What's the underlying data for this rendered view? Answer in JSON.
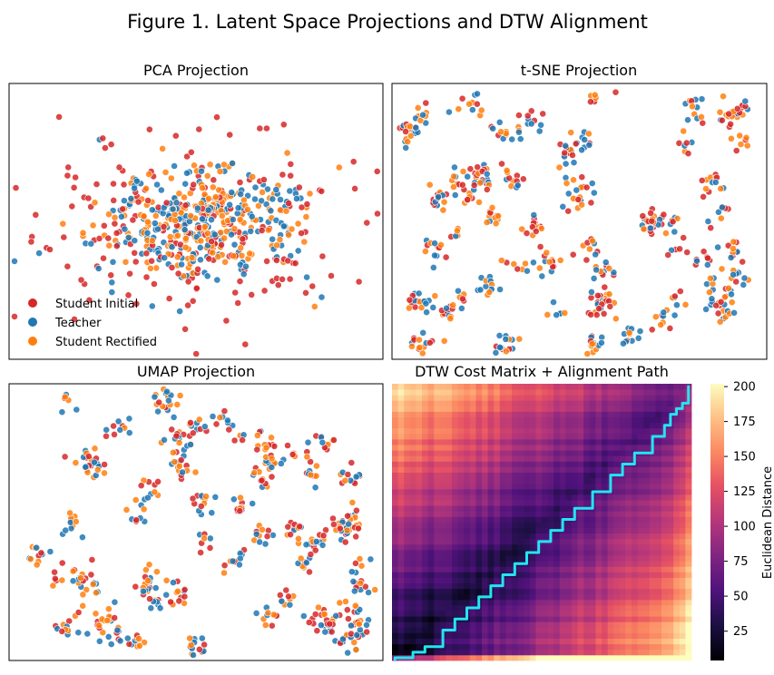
{
  "figure": {
    "title": "Figure 1. Latent Space Projections and DTW Alignment"
  },
  "colors": {
    "student_initial": "#d62728",
    "teacher": "#1f77b4",
    "student_rectified": "#ff7f0e",
    "path": "#22e5f2"
  },
  "chart_data": [
    {
      "type": "scatter",
      "title": "PCA Projection",
      "xlabel": "",
      "ylabel": "",
      "grid": false,
      "legend": {
        "placement": "bottom-left",
        "entries": [
          "Student Initial",
          "Teacher",
          "Student Rectified"
        ]
      },
      "distribution": "gaussian cluster centered at panel middle, wider spread for Student Initial",
      "series": [
        {
          "name": "Student Initial",
          "color": "#d62728",
          "count": 200
        },
        {
          "name": "Teacher",
          "color": "#1f77b4",
          "count": 200
        },
        {
          "name": "Student Rectified",
          "color": "#ff7f0e",
          "count": 200
        }
      ]
    },
    {
      "type": "scatter",
      "title": "t-SNE Projection",
      "xlabel": "",
      "ylabel": "",
      "grid": false,
      "distribution": "many small interleaved clusters spread across the panel",
      "series": [
        {
          "name": "Student Initial",
          "color": "#d62728",
          "count": 200
        },
        {
          "name": "Teacher",
          "color": "#1f77b4",
          "count": 200
        },
        {
          "name": "Student Rectified",
          "color": "#ff7f0e",
          "count": 200
        }
      ]
    },
    {
      "type": "scatter",
      "title": "UMAP Projection",
      "xlabel": "",
      "ylabel": "",
      "grid": false,
      "distribution": "scattered small clusters and chains filling the panel",
      "series": [
        {
          "name": "Student Initial",
          "color": "#d62728",
          "count": 200
        },
        {
          "name": "Teacher",
          "color": "#1f77b4",
          "count": 200
        },
        {
          "name": "Student Rectified",
          "color": "#ff7f0e",
          "count": 200
        }
      ]
    },
    {
      "type": "heatmap",
      "title": "DTW Cost Matrix + Alignment Path",
      "colormap": "magma",
      "colorbar": {
        "label": "Euclidean Distance",
        "ticks": [
          25,
          50,
          75,
          100,
          125,
          150,
          175,
          200
        ],
        "range": [
          4,
          202
        ]
      },
      "rows": 50,
      "cols": 50,
      "alignment_path": {
        "color": "#22e5f2",
        "points": [
          [
            0,
            0
          ],
          [
            2,
            0
          ],
          [
            3,
            1
          ],
          [
            5,
            2
          ],
          [
            8,
            5
          ],
          [
            10,
            7
          ],
          [
            12,
            9
          ],
          [
            14,
            11
          ],
          [
            16,
            13
          ],
          [
            18,
            15
          ],
          [
            20,
            17
          ],
          [
            22,
            19
          ],
          [
            24,
            21
          ],
          [
            26,
            23
          ],
          [
            28,
            25
          ],
          [
            30,
            27
          ],
          [
            33,
            30
          ],
          [
            36,
            33
          ],
          [
            38,
            35
          ],
          [
            40,
            37
          ],
          [
            43,
            40
          ],
          [
            45,
            42
          ],
          [
            46,
            44
          ],
          [
            47,
            45
          ],
          [
            48,
            46
          ],
          [
            49,
            48
          ],
          [
            49,
            49
          ]
        ],
        "note": "monotonic path from bottom-left to top-right, ending with a vertical run along the right edge"
      }
    }
  ]
}
